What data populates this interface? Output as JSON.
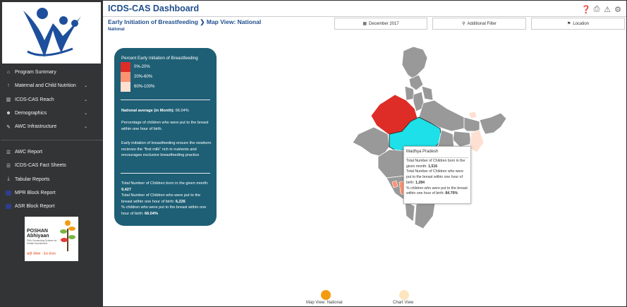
{
  "header": {
    "app_title": "ICDS-CAS Dashboard",
    "breadcrumb": "Early Initiation of Breastfeeding",
    "breadcrumb_sep": "❯",
    "breadcrumb_current": "Map View: National",
    "sub_crumb": "National"
  },
  "filters": {
    "month_label": "December 2017",
    "additional_label": "Additional Filter",
    "location_label": "Location"
  },
  "sidebar": {
    "primary_items": [
      {
        "label": "Program Summary",
        "icon": "home-icon",
        "has_chevron": false
      },
      {
        "label": "Maternal and Child Nutrition",
        "icon": "upload-icon",
        "has_chevron": true
      },
      {
        "label": "ICDS-CAS Reach",
        "icon": "bar-chart-icon",
        "has_chevron": true
      },
      {
        "label": "Demographics",
        "icon": "users-icon",
        "has_chevron": true
      },
      {
        "label": "AWC Infrastructure",
        "icon": "wrench-icon",
        "has_chevron": true
      }
    ],
    "secondary_items": [
      {
        "label": "AWC Report",
        "icon": "list-icon"
      },
      {
        "label": "ICDS-CAS Fact Sheets",
        "icon": "list-icon"
      },
      {
        "label": "Tabular Reports",
        "icon": "download-icon"
      },
      {
        "label": "MPR Block Report",
        "icon": "report-icon"
      },
      {
        "label": "ASR Block Report",
        "icon": "report-icon"
      }
    ],
    "poshan_title_1": "POSHAN",
    "poshan_title_2": "Abhiyaan",
    "poshan_sub": "PM's Overarching Scheme for Holistic Nourishment",
    "poshan_tagline": "सही पोषण - देश रोशन"
  },
  "legend": {
    "title": "Percent Early Initiation of Breastfeeding",
    "items": [
      {
        "label": "0%-20%",
        "color": "#de2d26"
      },
      {
        "label": "20%-60%",
        "color": "#fc9272"
      },
      {
        "label": "60%-100%",
        "color": "#fee0d2"
      }
    ]
  },
  "info": {
    "national_avg_label": "National average (in Month):",
    "national_avg_value": "66.04%",
    "definition": "Percentage of children who were put to the breast within one hour of birth.",
    "description": "Early initiation of breastfeeding ensure the newborn recieves the \"first milk\" rich in nutrients and encourages exclusive breastfeeding practice",
    "total_born_label": "Total Number of Children born in the given month:",
    "total_born_value": "9,427",
    "put_to_breast_label": "Total Number of Children who were put to the breast within one hour of birth:",
    "put_to_breast_value": "6,226",
    "percent_label": "% children who were put to the breast within one hour of birth:",
    "percent_value": "66.04%"
  },
  "tooltip": {
    "state": "Madhya Pradesh",
    "born_label": "Total Number of Children born in the given month:",
    "born_value": "1,516",
    "put_label": "Total Number of Children who were put to the breast within one hour of birth:",
    "put_value": "1,284",
    "pct_label": "% children who were put to the breast within one hour of birth:",
    "pct_value": "84.70%"
  },
  "views": {
    "map_label": "Map View: National",
    "chart_label": "Chart View",
    "active_color": "#f39c12",
    "inactive_color": "#fde5c0"
  },
  "colors": {
    "sidebar_bg": "#333436",
    "panel_bg": "#1e5f75",
    "title_blue": "#1f4e8c",
    "highlight_state": "#1ee0e8",
    "no_data_state": "#999999"
  }
}
